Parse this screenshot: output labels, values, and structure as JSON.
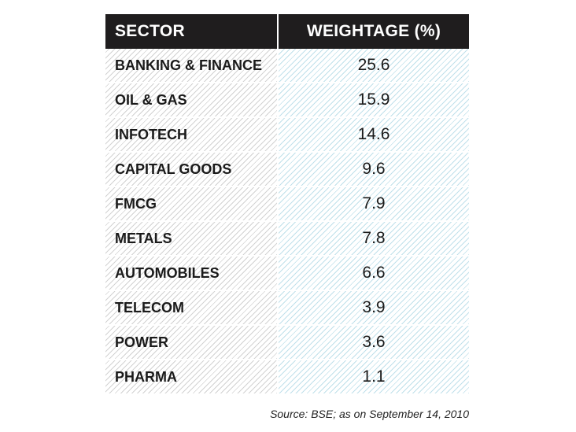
{
  "chart_data": {
    "type": "table",
    "columns": [
      "SECTOR",
      "WEIGHTAGE (%)"
    ],
    "rows": [
      {
        "sector": "BANKING & FINANCE",
        "weightage": "25.6"
      },
      {
        "sector": "OIL & GAS",
        "weightage": "15.9"
      },
      {
        "sector": "INFOTECH",
        "weightage": "14.6"
      },
      {
        "sector": "CAPITAL GOODS",
        "weightage": "9.6"
      },
      {
        "sector": "FMCG",
        "weightage": "7.9"
      },
      {
        "sector": "METALS",
        "weightage": "7.8"
      },
      {
        "sector": "AUTOMOBILES",
        "weightage": "6.6"
      },
      {
        "sector": "TELECOM",
        "weightage": "3.9"
      },
      {
        "sector": "POWER",
        "weightage": "3.6"
      },
      {
        "sector": "PHARMA",
        "weightage": "1.1"
      }
    ],
    "source": "Source: BSE; as on September 14, 2010"
  },
  "colors": {
    "header_bg": "#1f1d1e",
    "header_text": "#ffffff",
    "sector_hatch": "#d2d2d2",
    "weight_hatch": "#bfe0ea"
  }
}
